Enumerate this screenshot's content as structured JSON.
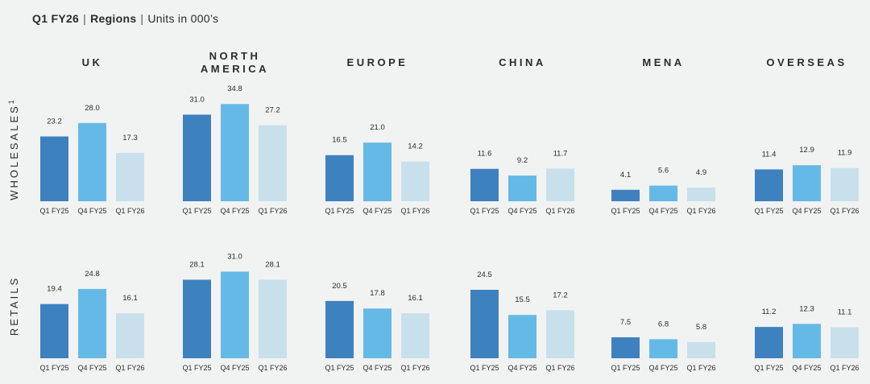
{
  "header": {
    "period": "Q1 FY26",
    "dimension": "Regions",
    "units": "Units in 000’s",
    "separator": "|"
  },
  "colors": {
    "Q1 FY25": "#3e81bf",
    "Q4 FY25": "#65b9e6",
    "Q1 FY26": "#c8e0ec",
    "background": "#f1f2f2",
    "text": "#2b2b2b"
  },
  "chart_data": {
    "type": "bar",
    "categories": [
      "Q1 FY25",
      "Q4 FY25",
      "Q1 FY26"
    ],
    "regions": [
      "UK",
      "NORTH AMERICA",
      "EUROPE",
      "CHINA",
      "MENA",
      "OVERSEAS"
    ],
    "rows": [
      {
        "label": "WHOLESALES",
        "label_superscript": "1",
        "values": [
          [
            23.2,
            28.0,
            17.3
          ],
          [
            31.0,
            34.8,
            27.2
          ],
          [
            16.5,
            21.0,
            14.2
          ],
          [
            11.6,
            9.2,
            11.7
          ],
          [
            4.1,
            5.6,
            4.9
          ],
          [
            11.4,
            12.9,
            11.9
          ]
        ]
      },
      {
        "label": "RETAILS",
        "label_superscript": "",
        "values": [
          [
            19.4,
            24.8,
            16.1
          ],
          [
            28.1,
            31.0,
            28.1
          ],
          [
            20.5,
            17.8,
            16.1
          ],
          [
            24.5,
            15.5,
            17.2
          ],
          [
            7.5,
            6.8,
            5.8
          ],
          [
            11.2,
            12.3,
            11.1
          ]
        ]
      }
    ],
    "value_format": "one decimal",
    "grid": false,
    "legend": "none"
  }
}
